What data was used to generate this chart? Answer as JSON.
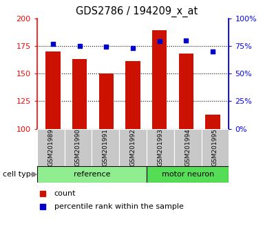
{
  "title": "GDS2786 / 194209_x_at",
  "samples": [
    "GSM201989",
    "GSM201990",
    "GSM201991",
    "GSM201992",
    "GSM201993",
    "GSM201994",
    "GSM201995"
  ],
  "counts": [
    170,
    163,
    150,
    161,
    189,
    168,
    113
  ],
  "percentile_ranks": [
    77,
    75,
    74,
    73,
    79,
    80,
    70
  ],
  "bar_color": "#CC1100",
  "dot_color": "#0000CC",
  "ylim_left": [
    100,
    200
  ],
  "ylim_right": [
    0,
    100
  ],
  "yticks_left": [
    100,
    125,
    150,
    175,
    200
  ],
  "yticks_right": [
    0,
    25,
    50,
    75,
    100
  ],
  "ytick_labels_right": [
    "0%",
    "25%",
    "50%",
    "75%",
    "100%"
  ],
  "gridlines_at": [
    125,
    150,
    175
  ],
  "ref_color": "#90EE90",
  "motor_color": "#55DD55",
  "sample_box_color": "#C8C8C8",
  "legend_count_label": "count",
  "legend_pct_label": "percentile rank within the sample",
  "cell_type_label": "cell type",
  "n_ref": 4,
  "n_motor": 3
}
